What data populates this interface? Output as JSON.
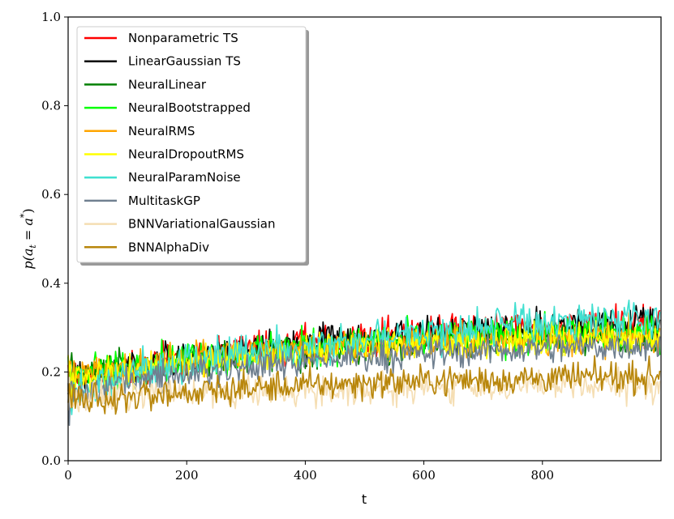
{
  "chart_data": {
    "type": "line",
    "title": "",
    "xlabel": "t",
    "ylabel": "p(a_t = a^*)",
    "ylabel_parts": {
      "p": "p(",
      "a": "a",
      "sub": "t",
      "eq": " = ",
      "a2": "a",
      "sup": "*",
      "close": ")"
    },
    "xlim": [
      0,
      1000
    ],
    "ylim": [
      0.0,
      1.0
    ],
    "xticks": [
      0,
      200,
      400,
      600,
      800
    ],
    "xtick_labels": [
      "0",
      "200",
      "400",
      "600",
      "800"
    ],
    "yticks": [
      0.0,
      0.2,
      0.4,
      0.6,
      0.8,
      1.0
    ],
    "ytick_labels": [
      "0.0",
      "0.2",
      "0.4",
      "0.6",
      "0.8",
      "1.0"
    ],
    "grid": false,
    "legend_position": "top-left",
    "series": [
      {
        "name": "Nonparametric TS",
        "color": "#ff0000",
        "start": 0.18,
        "end": 0.31,
        "noise": 0.018
      },
      {
        "name": "LinearGaussian TS",
        "color": "#000000",
        "start": 0.18,
        "end": 0.31,
        "noise": 0.018
      },
      {
        "name": "NeuralLinear",
        "color": "#008000",
        "start": 0.19,
        "end": 0.28,
        "noise": 0.018
      },
      {
        "name": "NeuralBootstrapped",
        "color": "#00ff00",
        "start": 0.19,
        "end": 0.29,
        "noise": 0.02
      },
      {
        "name": "NeuralRMS",
        "color": "#ffa500",
        "start": 0.19,
        "end": 0.28,
        "noise": 0.018
      },
      {
        "name": "NeuralDropoutRMS",
        "color": "#ffff00",
        "start": 0.18,
        "end": 0.28,
        "noise": 0.018
      },
      {
        "name": "NeuralParamNoise",
        "color": "#40e0d0",
        "start": 0.15,
        "end": 0.32,
        "noise": 0.02
      },
      {
        "name": "MultitaskGP",
        "color": "#708090",
        "start": 0.15,
        "end": 0.26,
        "noise": 0.016
      },
      {
        "name": "BNNVariationalGaussian",
        "color": "#f5deb3",
        "start": 0.14,
        "end": 0.17,
        "noise": 0.016
      },
      {
        "name": "BNNAlphaDiv",
        "color": "#b8860b",
        "start": 0.13,
        "end": 0.19,
        "noise": 0.016
      }
    ]
  }
}
